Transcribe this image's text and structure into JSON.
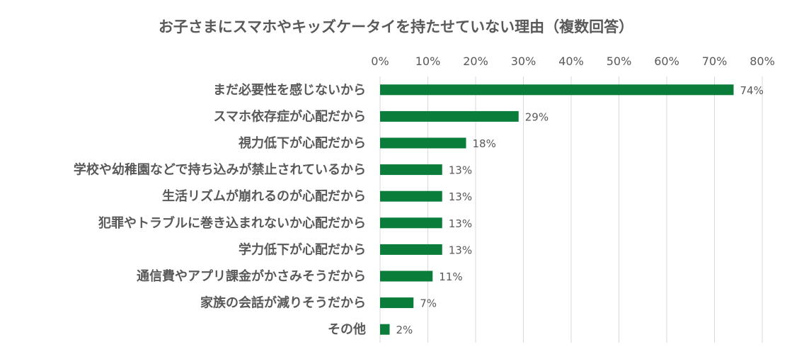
{
  "chart_data": {
    "type": "bar",
    "orientation": "horizontal",
    "title": "お子さまにスマホやキッズケータイを持たせていない理由（複数回答）",
    "categories": [
      "まだ必要性を感じないから",
      "スマホ依存症が心配だから",
      "視力低下が心配だから",
      "学校や幼稚園などで持ち込みが禁止されているから",
      "生活リズムが崩れるのが心配だから",
      "犯罪やトラブルに巻き込まれないか心配だから",
      "学力低下が心配だから",
      "通信費やアプリ課金がかさみそうだから",
      "家族の会話が減りそうだから",
      "その他"
    ],
    "values": [
      74,
      29,
      18,
      13,
      13,
      13,
      13,
      11,
      7,
      2
    ],
    "value_labels": [
      "74%",
      "29%",
      "18%",
      "13%",
      "13%",
      "13%",
      "13%",
      "11%",
      "7%",
      "2%"
    ],
    "xlim": [
      0,
      80
    ],
    "x_ticks": [
      "0%",
      "10%",
      "20%",
      "30%",
      "40%",
      "50%",
      "60%",
      "70%",
      "80%"
    ],
    "x_axis_position": "top",
    "grid": true,
    "bar_color": "#0b7d3b",
    "grid_color": "#d9d9d9",
    "text_color": "#595959"
  }
}
